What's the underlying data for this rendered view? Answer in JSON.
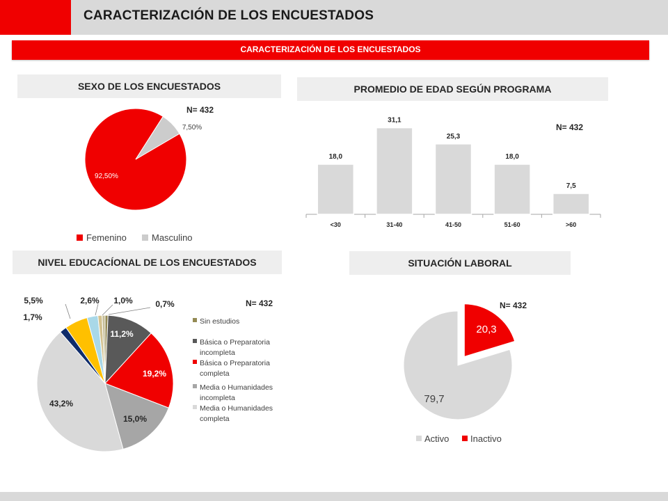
{
  "page": {
    "title": "CARACTERIZACIÓN DE LOS ENCUESTADOS",
    "subtitle": "CARACTERIZACIÓN DE LOS ENCUESTADOS",
    "accent_color": "#f00000",
    "gray_color": "#d9d9d9"
  },
  "chart_data": [
    {
      "id": "sexo",
      "type": "pie",
      "title": "SEXO DE LOS ENCUESTADOS",
      "n_label": "N= 432",
      "categories": [
        "Femenino",
        "Masculino"
      ],
      "values": [
        92.5,
        7.5
      ],
      "data_labels": [
        "92,50%",
        "7,50%"
      ],
      "colors": [
        "#f00000",
        "#cccccc"
      ],
      "legend": "bottom"
    },
    {
      "id": "edad",
      "type": "bar",
      "title": "PROMEDIO DE EDAD SEGÚN PROGRAMA",
      "n_label": "N= 432",
      "categories": [
        "<30",
        "31-40",
        "41-50",
        "51-60",
        ">60"
      ],
      "values": [
        18.0,
        31.1,
        25.3,
        18.0,
        7.5
      ],
      "data_labels": [
        "18,0",
        "31,1",
        "25,3",
        "18,0",
        "7,5"
      ],
      "ylim": [
        0,
        35
      ],
      "color": "#d9d9d9",
      "grid": false
    },
    {
      "id": "educacion",
      "type": "pie",
      "title": "NIVEL EDUCACÍONAL DE LOS ENCUESTADOS",
      "n_label": "N= 432",
      "categories": [
        "Sin estudios",
        "Básica o Preparatoria incompleta",
        "Básica o Preparatoria completa",
        "Media o Humanidades incompleta",
        "Media o Humanidades completa",
        "",
        "",
        "",
        "",
        ""
      ],
      "legend_entries": [
        [
          "Sin estudios"
        ],
        [
          "Básica o Preparatoria",
          "incompleta"
        ],
        [
          "Básica o Preparatoria",
          "completa"
        ],
        [
          "Media o Humanidades",
          "incompleta"
        ],
        [
          "Media o Humanidades",
          "completa"
        ]
      ],
      "values": [
        0.7,
        11.2,
        19.2,
        15.0,
        43.2,
        1.7,
        5.5,
        2.6,
        1.0,
        0.7
      ],
      "data_labels": [
        "",
        "11,2%",
        "19,2%",
        "15,0%",
        "43,2%",
        "1,7%",
        "5,5%",
        "2,6%",
        "1,0%",
        "0,7%"
      ],
      "colors": [
        "#948a54",
        "#595959",
        "#f00000",
        "#a6a6a6",
        "#d9d9d9",
        "#0f2c6b",
        "#ffc000",
        "#a9d8e8",
        "#d3c28f",
        "#c4bd97"
      ],
      "legend": "right"
    },
    {
      "id": "laboral",
      "type": "pie",
      "title": "SITUACIÓN LABORAL",
      "n_label": "N= 432",
      "categories": [
        "Activo",
        "Inactivo"
      ],
      "values": [
        79.7,
        20.3
      ],
      "data_labels": [
        "79,7",
        "20,3"
      ],
      "colors": [
        "#d9d9d9",
        "#f00000"
      ],
      "legend": "bottom"
    }
  ]
}
